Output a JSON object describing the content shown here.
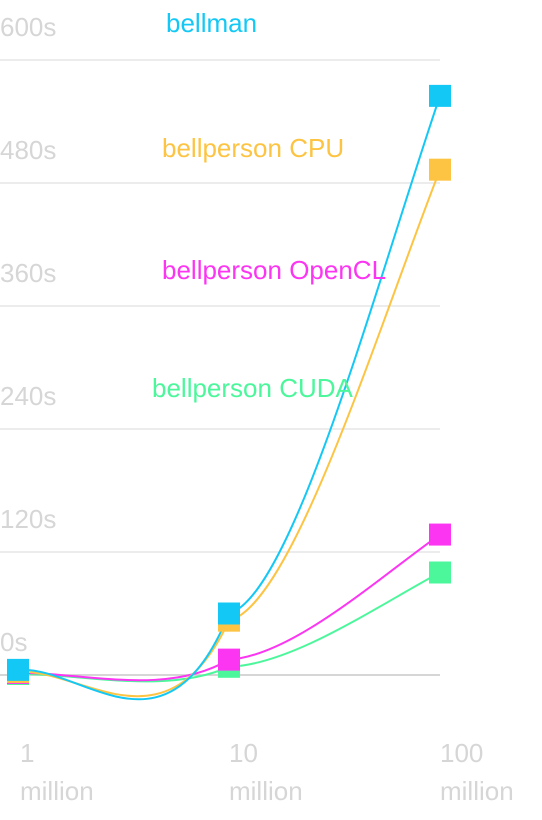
{
  "chart_data": {
    "type": "line",
    "x_scale": "log",
    "x": [
      1000000,
      10000000,
      100000000
    ],
    "x_tick_labels": [
      {
        "value": "1",
        "unit": "million"
      },
      {
        "value": "10",
        "unit": "million"
      },
      {
        "value": "100",
        "unit": "million"
      }
    ],
    "y_tick_labels": [
      "0s",
      "120s",
      "240s",
      "360s",
      "480s",
      "600s"
    ],
    "y_ticks": [
      0,
      120,
      240,
      360,
      480,
      600
    ],
    "ylim": [
      0,
      600
    ],
    "grid": true,
    "legend_placement": "inline, stacked in upper middle",
    "series": [
      {
        "name": "bellman",
        "color": "#14c8f5",
        "values": [
          5,
          60,
          565
        ]
      },
      {
        "name": "bellperson CPU",
        "color": "#fdc443",
        "values": [
          3,
          53,
          493
        ]
      },
      {
        "name": "bellperson OpenCL",
        "color": "#fc35f2",
        "values": [
          2,
          15,
          137
        ]
      },
      {
        "name": "bellperson CUDA",
        "color": "#4cf79c",
        "values": [
          1,
          8,
          100
        ]
      }
    ]
  }
}
